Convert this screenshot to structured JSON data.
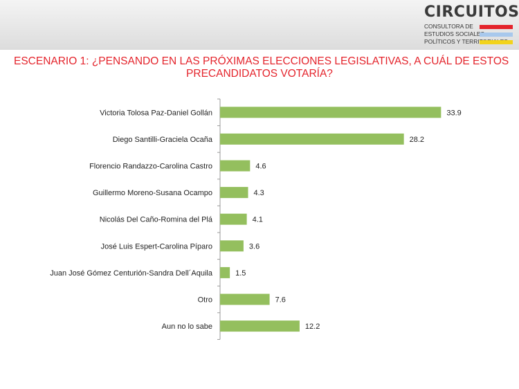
{
  "header": {
    "brand_name": "CIRCUITOS",
    "brand_tagline_1": "CONSULTORA DE",
    "brand_tagline_2": "ESTUDIOS SOCIALES,",
    "brand_tagline_3": "POLÍTICOS Y TERRITORIALES",
    "flag_colors": [
      "#e4232b",
      "#a8c8ec",
      "#f2d31b"
    ]
  },
  "chart_data": {
    "type": "bar",
    "orientation": "horizontal",
    "title": "ESCENARIO 1: ¿PENSANDO EN LAS PRÓXIMAS ELECCIONES LEGISLATIVAS, A CUÁL DE ESTOS PRECANDIDATOS VOTARÍA?",
    "title_lines": [
      "ESCENARIO 1: ¿PENSANDO EN LAS PRÓXIMAS ELECCIONES LEGISLATIVAS, A CUÁL DE ESTOS",
      "PRECANDIDATOS VOTARÍA?"
    ],
    "categories": [
      "Victoria Tolosa Paz-Daniel Gollán",
      "Diego Santilli-Graciela Ocaña",
      "Florencio Randazzo-Carolina Castro",
      "Guillermo Moreno-Susana Ocampo",
      "Nicolás Del Caño-Romina del Plá",
      "José Luis Espert-Carolina Píparo",
      "Juan José Gómez Centurión-Sandra Dell´Aquila",
      "Otro",
      "Aun no lo sabe"
    ],
    "values": [
      33.9,
      28.2,
      4.6,
      4.3,
      4.1,
      3.6,
      1.5,
      7.6,
      12.2
    ],
    "value_labels": [
      "33.9",
      "28.2",
      "4.6",
      "4.3",
      "4.1",
      "3.6",
      "1.5",
      "7.6",
      "12.2"
    ],
    "xlim": [
      0,
      34.5
    ],
    "bar_color": "#94bf5e",
    "axis_color": "#999999",
    "title_color": "#e4232b",
    "grid": false,
    "legend": "none"
  }
}
